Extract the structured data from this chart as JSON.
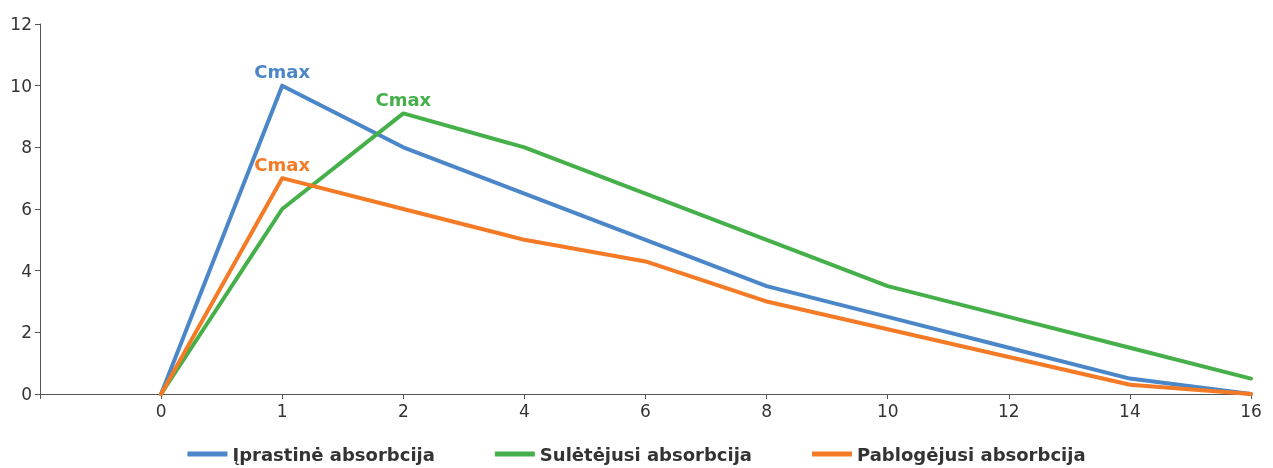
{
  "chart_data": {
    "type": "line",
    "categories": [
      null,
      "0",
      "1",
      "2",
      "4",
      "6",
      "8",
      "10",
      "12",
      "14",
      "16"
    ],
    "series": [
      {
        "name": "Įprastinė absorbcija",
        "color": "#4a86c8",
        "values": [
          null,
          0,
          10,
          8,
          6.5,
          5,
          3.5,
          2.5,
          1.5,
          0.5,
          0
        ]
      },
      {
        "name": "Sulėtėjusi absorbcija",
        "color": "#45b04a",
        "values": [
          null,
          0,
          6,
          9.1,
          8,
          6.5,
          5,
          3.5,
          2.5,
          1.5,
          0.5
        ]
      },
      {
        "name": "Pablogėjusi absorbcija",
        "color": "#f47a26",
        "values": [
          null,
          0,
          7,
          6,
          5,
          4.3,
          3,
          2.1,
          1.2,
          0.3,
          0
        ]
      }
    ],
    "ylim": [
      0,
      12
    ],
    "yticks": [
      0,
      2,
      4,
      6,
      8,
      10,
      12
    ],
    "grid": false,
    "legend": "bottom",
    "line_style": "solid",
    "annotations": [
      {
        "text": "Cmax",
        "x": "1",
        "y": 10
      },
      {
        "text": "Cmax",
        "x": "2",
        "y": 9.1
      },
      {
        "text": "Cmax",
        "x": "1",
        "y": 7
      }
    ]
  }
}
